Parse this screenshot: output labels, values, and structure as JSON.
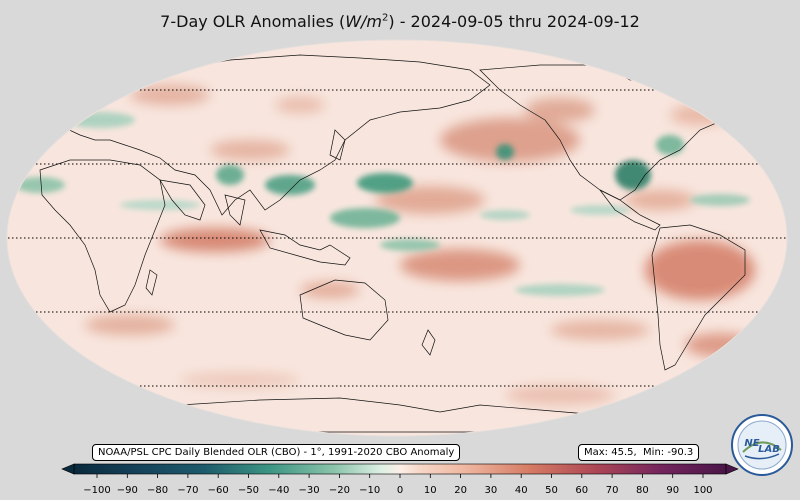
{
  "title": {
    "prefix": "7-Day OLR Anomalies (",
    "unit_letter": "W/m",
    "unit_exp": "2",
    "suffix": ") - 2024-09-05 thru 2024-09-12"
  },
  "source_text": "NOAA/PSL CPC Daily Blended OLR (CBO) - 1°, 1991-2020 CBO Anomaly",
  "stats": {
    "max_label": "Max:",
    "max": "45.5",
    "min_label": "Min:",
    "min": "-90.3"
  },
  "colorbar": {
    "ticks": [
      "−100",
      "−90",
      "−80",
      "−70",
      "−60",
      "−50",
      "−40",
      "−30",
      "−20",
      "−10",
      "0",
      "10",
      "20",
      "30",
      "40",
      "50",
      "60",
      "70",
      "80",
      "90",
      "100"
    ],
    "range": [
      -100,
      100
    ],
    "colors_negative": [
      "#0a2a3d",
      "#15425a",
      "#1d5b6c",
      "#267a75",
      "#3c9583",
      "#62ae96",
      "#8cc5ab",
      "#b7dcc7",
      "#dcefe3"
    ],
    "color_center": "#fcefe8",
    "colors_positive": [
      "#f7d7c8",
      "#efb7a0",
      "#e3987e",
      "#d57b64",
      "#c35e55",
      "#ad4756",
      "#92335b",
      "#74245d",
      "#4a1648"
    ]
  },
  "logo_text": {
    "left": "NE",
    "right": "LAB"
  },
  "colors": {
    "background": "#d9d9d9",
    "ocean_base": "#f8e4dc",
    "positive_anomaly": "#c96a55",
    "negative_anomaly": "#2e8c70"
  }
}
